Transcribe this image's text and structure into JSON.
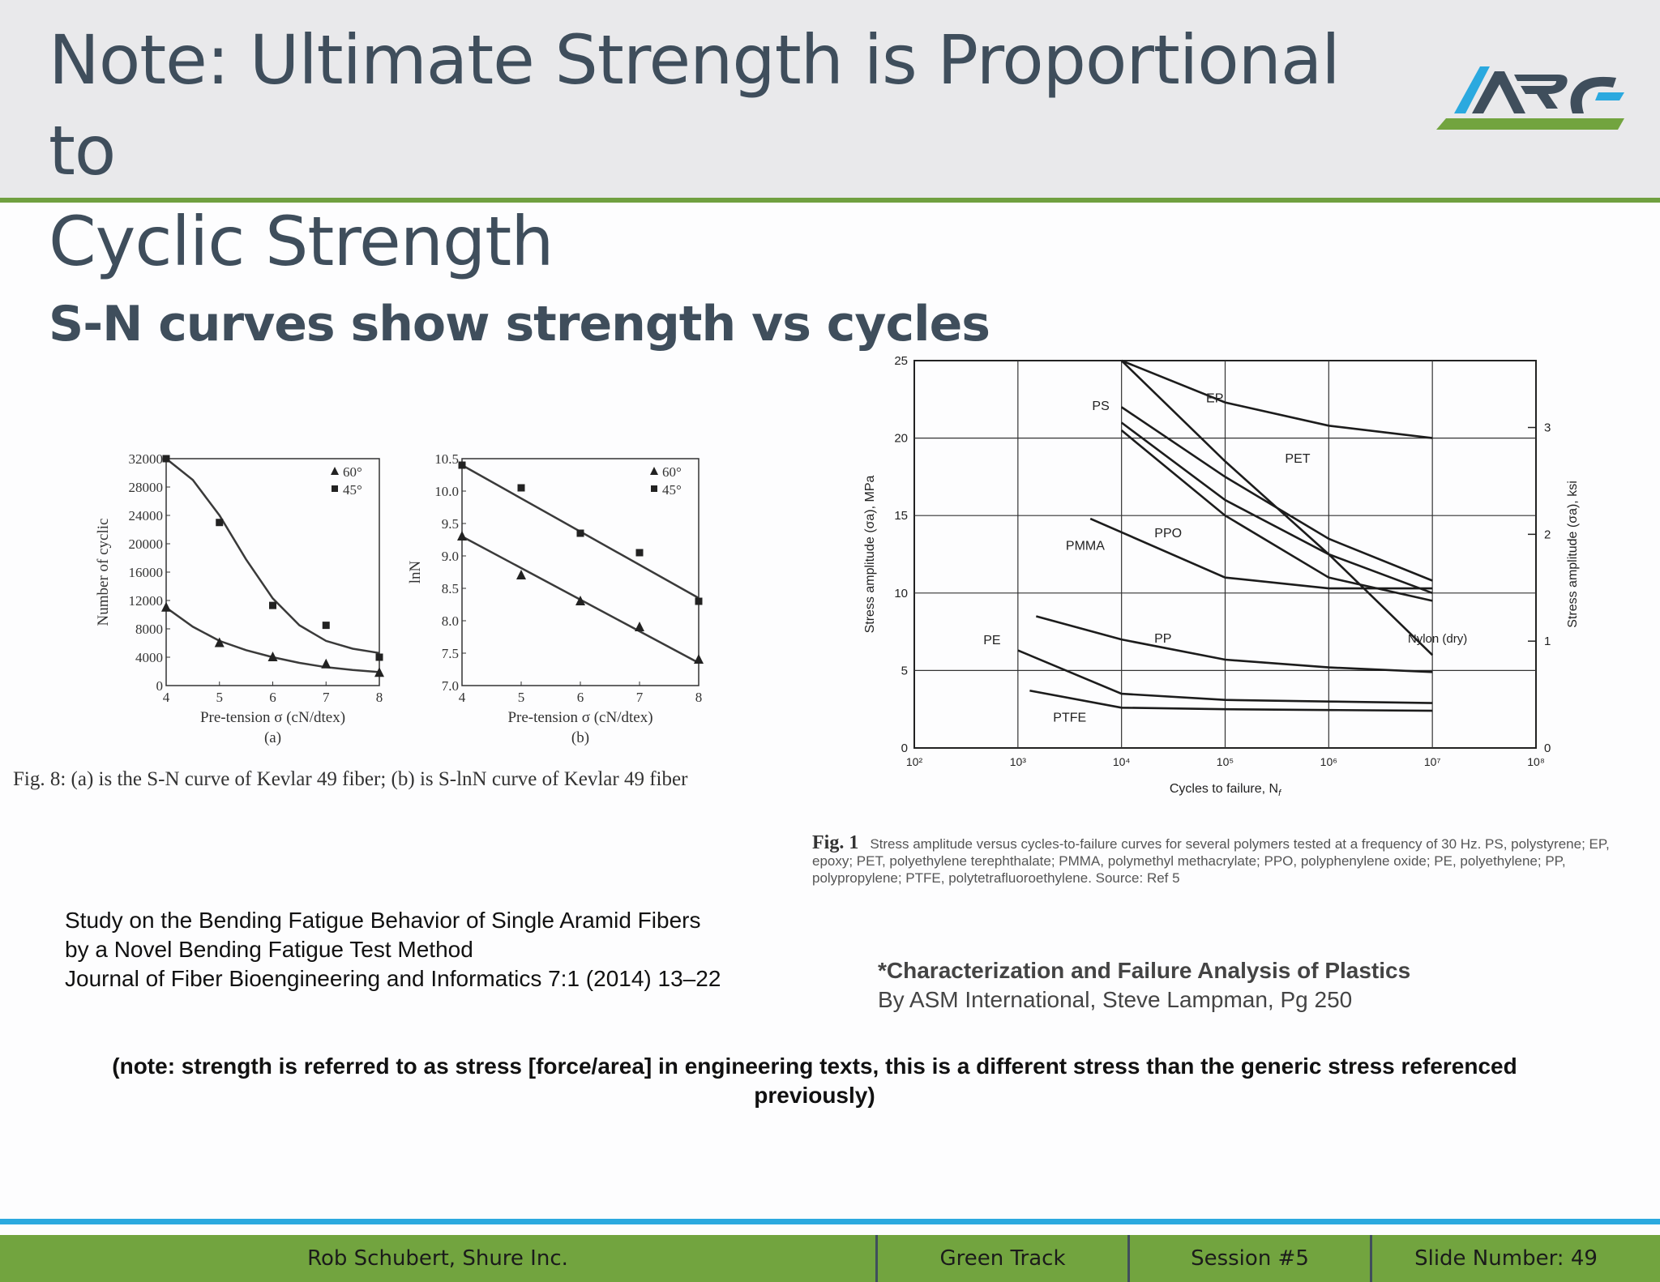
{
  "slide": {
    "title": "Note: Ultimate Strength is Proportional to Cyclic Strength",
    "title_line1": "Note: Ultimate Strength is Proportional to",
    "title_line2": "Cyclic Strength",
    "logo_text": "ARC",
    "subtitle": "S-N curves show strength vs cycles",
    "fig8_caption": "Fig. 8: (a) is the S-N curve of Kevlar 49 fiber; (b) is S-lnN curve of Kevlar 49 fiber",
    "fig1_label": "Fig. 1",
    "fig1_caption": "Stress amplitude versus cycles-to-failure curves for several polymers tested at a frequency of 30 Hz. PS, polystyrene; EP, epoxy; PET, polyethylene terephthalate; PMMA, polymethyl methacrylate; PPO, polyphenylene oxide; PE, polyethylene; PP, polypropylene; PTFE, polytetrafluoroethylene. Source: Ref 5",
    "ref_a": [
      "Study on the Bending Fatigue Behavior of Single Aramid Fibers",
      "by a Novel Bending Fatigue Test Method",
      "Journal of Fiber Bioengineering and Informatics 7:1 (2014) 13–22"
    ],
    "ref_b_title": "*Characterization and Failure Analysis of Plastics",
    "ref_b_author": "By ASM International, Steve Lampman, Pg 250",
    "note": "(note: strength is referred to as stress [force/area] in engineering texts, this is a different stress than the generic stress referenced previously)",
    "footer": {
      "presenter": "Rob Schubert, Shure Inc.",
      "track": "Green Track",
      "session": "Session #5",
      "slide_number": "Slide Number: 49"
    },
    "colors": {
      "header_bg": "#e9e9eb",
      "accent_green": "#72a43f",
      "accent_blue": "#2ba9df",
      "title_text": "#3f4e5c"
    }
  },
  "chart_data": [
    {
      "type": "scatter",
      "sublabel": "(a)",
      "xlabel": "Pre-tension σ (cN/dtex)",
      "ylabel": "Number of cyclic",
      "xlim": [
        4,
        8
      ],
      "ylim": [
        0,
        32000
      ],
      "xticks": [
        4,
        5,
        6,
        7,
        8
      ],
      "yticks": [
        0,
        4000,
        8000,
        12000,
        16000,
        20000,
        24000,
        28000,
        32000
      ],
      "ytick_labels": [
        "0",
        "4000",
        "8000",
        "12000",
        "16000",
        "20000",
        "24000",
        "28000",
        "32000"
      ],
      "legend": "top-right",
      "series": [
        {
          "name": "60°",
          "marker": "triangle",
          "x": [
            4,
            5,
            6,
            7,
            8
          ],
          "y": [
            11000,
            6000,
            4000,
            3000,
            1800
          ],
          "fit": [
            [
              4,
              11000
            ],
            [
              4.5,
              8300
            ],
            [
              5,
              6300
            ],
            [
              5.5,
              5000
            ],
            [
              6,
              4000
            ],
            [
              6.5,
              3200
            ],
            [
              7,
              2600
            ],
            [
              7.5,
              2200
            ],
            [
              8,
              1900
            ]
          ]
        },
        {
          "name": "45°",
          "marker": "square",
          "x": [
            4,
            5,
            6,
            7,
            8
          ],
          "y": [
            32000,
            23000,
            11300,
            8500,
            4000
          ],
          "fit": [
            [
              4,
              32000
            ],
            [
              4.5,
              29000
            ],
            [
              5,
              24000
            ],
            [
              5.5,
              17800
            ],
            [
              6,
              12300
            ],
            [
              6.5,
              8500
            ],
            [
              7,
              6300
            ],
            [
              7.5,
              5200
            ],
            [
              8,
              4600
            ]
          ]
        }
      ]
    },
    {
      "type": "scatter",
      "sublabel": "(b)",
      "xlabel": "Pre-tension σ (cN/dtex)",
      "ylabel": "lnN",
      "xlim": [
        4,
        8
      ],
      "ylim": [
        7.0,
        10.5
      ],
      "xticks": [
        4,
        5,
        6,
        7,
        8
      ],
      "yticks": [
        7.0,
        7.5,
        8.0,
        8.5,
        9.0,
        9.5,
        10.0,
        10.5
      ],
      "ytick_labels": [
        "7.0",
        "7.5",
        "8.0",
        "8.5",
        "9.0",
        "9.5",
        "10.0",
        "10.5"
      ],
      "legend": "top-right",
      "series": [
        {
          "name": "60°",
          "marker": "triangle",
          "x": [
            4,
            5,
            6,
            7,
            8
          ],
          "y": [
            9.3,
            8.7,
            8.3,
            7.9,
            7.4
          ],
          "fit": [
            [
              4,
              9.3
            ],
            [
              8,
              7.35
            ]
          ]
        },
        {
          "name": "45°",
          "marker": "square",
          "x": [
            4,
            5,
            6,
            7,
            8
          ],
          "y": [
            10.4,
            10.05,
            9.35,
            9.05,
            8.3
          ],
          "fit": [
            [
              4,
              10.4
            ],
            [
              8,
              8.35
            ]
          ]
        }
      ]
    },
    {
      "type": "line",
      "xscale": "log",
      "xlabel": "Cycles to failure, N",
      "xlabel_sub": "f",
      "ylabel": "Stress amplitude (σa), MPa",
      "ylabel_right": "Stress amplitude (σa), ksi",
      "xlim": [
        100,
        100000000
      ],
      "ylim": [
        0,
        25
      ],
      "xticks": [
        2,
        3,
        4,
        5,
        6,
        7,
        8
      ],
      "xtick_labels": [
        "10²",
        "10³",
        "10⁴",
        "10⁵",
        "10⁶",
        "10⁷",
        "10⁸"
      ],
      "yticks": [
        0,
        5,
        10,
        15,
        20,
        25
      ],
      "ytick_labels": [
        "0",
        "5",
        "10",
        "15",
        "20",
        "25"
      ],
      "right_ticks_ksi": [
        "0",
        "1",
        "2",
        "3"
      ],
      "grid": true,
      "series": [
        {
          "name": "EP",
          "x": [
            10000,
            100000,
            1000000,
            10000000
          ],
          "y": [
            25,
            22.3,
            20.8,
            20
          ]
        },
        {
          "name": "PS",
          "x": [
            10000,
            100000,
            1000000,
            10000000
          ],
          "y": [
            21,
            16,
            12.5,
            10
          ]
        },
        {
          "name": "PET",
          "x": [
            10000,
            100000,
            1000000,
            10000000
          ],
          "y": [
            22,
            17.5,
            13.5,
            10.8
          ]
        },
        {
          "name": "PPO",
          "x": [
            10000,
            100000,
            1000000,
            10000000
          ],
          "y": [
            20.5,
            15,
            11,
            9.5
          ]
        },
        {
          "name": "PMMA",
          "x": [
            5000,
            100000,
            1000000,
            10000000
          ],
          "y": [
            14.8,
            11,
            10.3,
            10.3
          ]
        },
        {
          "name": "Nylon (dry)",
          "x": [
            10000,
            100000,
            1000000,
            10000000
          ],
          "y": [
            25,
            18.5,
            12.5,
            6
          ]
        },
        {
          "name": "PP",
          "x": [
            1500,
            10000,
            100000,
            1000000,
            10000000
          ],
          "y": [
            8.5,
            7,
            5.7,
            5.2,
            4.9
          ]
        },
        {
          "name": "PE",
          "x": [
            1000,
            10000,
            100000,
            1000000,
            10000000
          ],
          "y": [
            6.3,
            3.5,
            3.1,
            3,
            2.9
          ]
        },
        {
          "name": "PTFE",
          "x": [
            1300,
            10000,
            100000,
            1000000,
            10000000
          ],
          "y": [
            3.7,
            2.6,
            2.5,
            2.45,
            2.4
          ]
        }
      ]
    }
  ]
}
